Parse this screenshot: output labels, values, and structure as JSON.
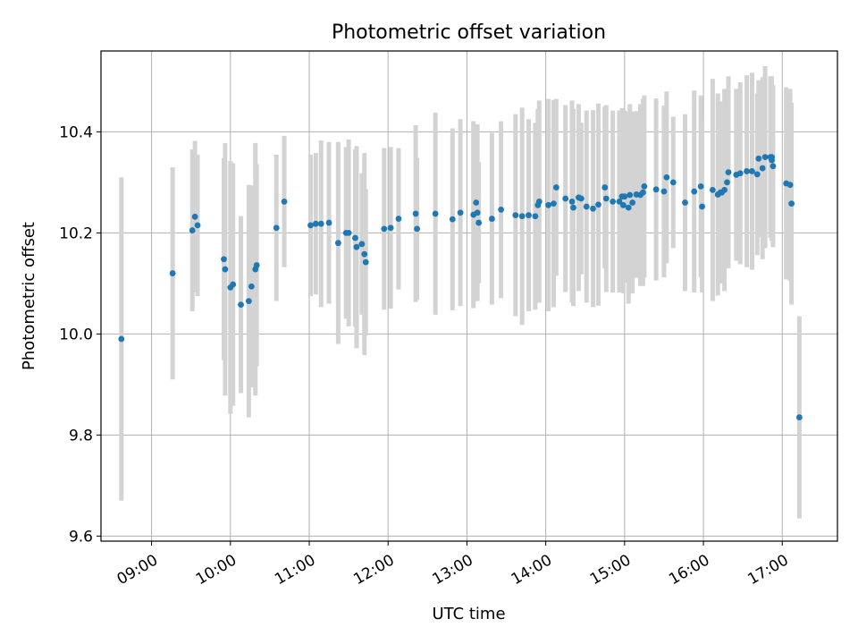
{
  "chart_data": {
    "type": "scatter",
    "title": "Photometric offset variation",
    "xlabel": "UTC time",
    "ylabel": "Photometric offset",
    "xlim_hours": [
      8.3583,
      17.7
    ],
    "ylim": [
      9.59,
      10.56
    ],
    "grid": true,
    "y_ticks": [
      9.6,
      9.8,
      10.0,
      10.2,
      10.4
    ],
    "y_tick_labels": [
      "9.6",
      "9.8",
      "10.0",
      "10.2",
      "10.4"
    ],
    "x_ticks_hours": [
      9,
      10,
      11,
      12,
      13,
      14,
      15,
      16,
      17
    ],
    "x_tick_labels": [
      "09:00",
      "10:00",
      "11:00",
      "12:00",
      "13:00",
      "14:00",
      "15:00",
      "16:00",
      "17:00"
    ],
    "colors": {
      "point": "#1f77b4",
      "errorbar": "#d3d3d3",
      "grid": "#b0b0b0"
    },
    "series": [
      {
        "name": "offset",
        "x_hours": [
          8.617,
          9.267,
          9.517,
          9.55,
          9.583,
          9.917,
          9.933,
          10.0,
          10.033,
          10.133,
          10.233,
          10.267,
          10.317,
          10.333,
          10.583,
          10.683,
          11.017,
          11.083,
          11.15,
          11.25,
          11.367,
          11.467,
          11.5,
          11.583,
          11.6,
          11.667,
          11.7,
          11.717,
          11.95,
          12.033,
          12.133,
          12.35,
          12.367,
          12.6,
          12.817,
          12.917,
          13.083,
          13.117,
          13.133,
          13.15,
          13.317,
          13.433,
          13.617,
          13.7,
          13.783,
          13.867,
          13.9,
          13.917,
          14.033,
          14.1,
          14.133,
          14.25,
          14.333,
          14.35,
          14.417,
          14.45,
          14.517,
          14.6,
          14.667,
          14.75,
          14.767,
          14.85,
          14.933,
          14.967,
          14.983,
          15.0,
          15.05,
          15.067,
          15.1,
          15.15,
          15.2,
          15.233,
          15.25,
          15.4,
          15.5,
          15.533,
          15.617,
          15.767,
          15.883,
          15.967,
          15.983,
          16.117,
          16.183,
          16.217,
          16.233,
          16.267,
          16.3,
          16.317,
          16.417,
          16.467,
          16.55,
          16.617,
          16.683,
          16.7,
          16.75,
          16.783,
          16.85,
          16.867,
          16.883,
          16.867,
          17.05,
          17.1,
          17.117,
          17.217
        ],
        "y": [
          9.99,
          10.12,
          10.205,
          10.232,
          10.215,
          10.148,
          10.128,
          10.092,
          10.098,
          10.058,
          10.065,
          10.094,
          10.128,
          10.136,
          10.21,
          10.262,
          10.215,
          10.218,
          10.218,
          10.22,
          10.18,
          10.2,
          10.2,
          10.19,
          10.172,
          10.178,
          10.158,
          10.142,
          10.208,
          10.21,
          10.228,
          10.238,
          10.208,
          10.238,
          10.227,
          10.24,
          10.236,
          10.26,
          10.24,
          10.22,
          10.228,
          10.246,
          10.235,
          10.233,
          10.235,
          10.233,
          10.255,
          10.262,
          10.255,
          10.258,
          10.29,
          10.268,
          10.262,
          10.25,
          10.27,
          10.268,
          10.252,
          10.248,
          10.256,
          10.29,
          10.268,
          10.262,
          10.262,
          10.272,
          10.255,
          10.272,
          10.25,
          10.275,
          10.26,
          10.276,
          10.275,
          10.28,
          10.292,
          10.286,
          10.282,
          10.31,
          10.3,
          10.26,
          10.282,
          10.292,
          10.252,
          10.285,
          10.276,
          10.28,
          10.28,
          10.285,
          10.3,
          10.32,
          10.315,
          10.318,
          10.322,
          10.322,
          10.316,
          10.347,
          10.328,
          10.35,
          10.35,
          10.344,
          10.332,
          10.35,
          10.298,
          10.295,
          10.258,
          9.835
        ],
        "yerr": [
          0.32,
          0.21,
          0.16,
          0.15,
          0.14,
          0.2,
          0.25,
          0.25,
          0.24,
          0.175,
          0.23,
          0.2,
          0.25,
          0.2,
          0.145,
          0.13,
          0.14,
          0.14,
          0.165,
          0.16,
          0.2,
          0.17,
          0.185,
          0.175,
          0.2,
          0.14,
          0.2,
          0.145,
          0.16,
          0.16,
          0.14,
          0.175,
          0.14,
          0.2,
          0.18,
          0.185,
          0.185,
          0.14,
          0.175,
          0.12,
          0.17,
          0.175,
          0.2,
          0.215,
          0.19,
          0.185,
          0.19,
          0.2,
          0.21,
          0.205,
          0.175,
          0.185,
          0.2,
          0.195,
          0.185,
          0.15,
          0.19,
          0.195,
          0.2,
          0.16,
          0.185,
          0.18,
          0.18,
          0.175,
          0.175,
          0.17,
          0.19,
          0.18,
          0.18,
          0.165,
          0.18,
          0.185,
          0.18,
          0.18,
          0.17,
          0.17,
          0.13,
          0.175,
          0.2,
          0.18,
          0.17,
          0.22,
          0.2,
          0.17,
          0.18,
          0.2,
          0.17,
          0.19,
          0.17,
          0.18,
          0.19,
          0.195,
          0.16,
          0.155,
          0.18,
          0.18,
          0.16,
          0.16,
          0.16,
          0.16,
          0.19,
          0.19,
          0.2,
          0.2
        ]
      }
    ]
  }
}
